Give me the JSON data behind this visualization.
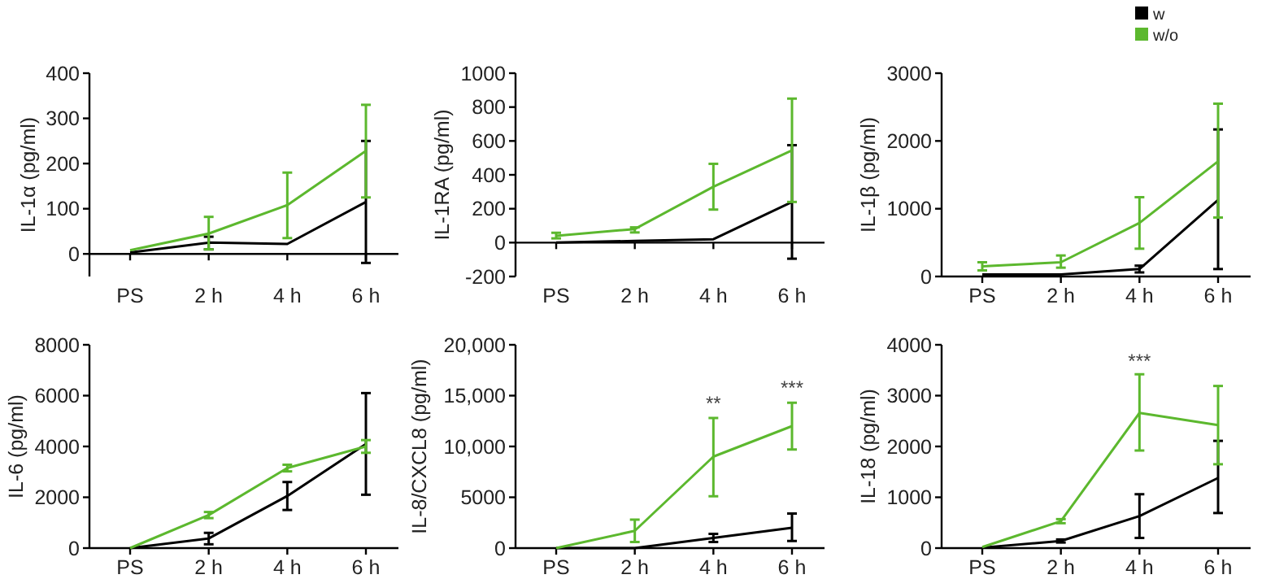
{
  "chart_data": [
    {
      "type": "line",
      "ylabel": "IL-1α (pg/ml)",
      "categories": [
        "PS",
        "2 h",
        "4 h",
        "6 h"
      ],
      "ylim": [
        -50,
        400
      ],
      "yticks": [
        0,
        100,
        200,
        300,
        400
      ],
      "series": [
        {
          "color": "#000000",
          "values": [
            3,
            25,
            22,
            115
          ],
          "errors": [
            null,
            [
              10,
              38
            ],
            null,
            [
              -20,
              250
            ]
          ]
        },
        {
          "color": "#5cb82e",
          "values": [
            8,
            45,
            108,
            228
          ],
          "errors": [
            null,
            [
              10,
              82
            ],
            [
              35,
              180
            ],
            [
              125,
              330
            ]
          ]
        }
      ]
    },
    {
      "type": "line",
      "ylabel": "IL-1RA (pg/ml)",
      "categories": [
        "PS",
        "2 h",
        "4 h",
        "6 h"
      ],
      "ylim": [
        -200,
        1000
      ],
      "yticks": [
        -200,
        0,
        200,
        400,
        600,
        800,
        1000
      ],
      "series": [
        {
          "color": "#000000",
          "values": [
            0,
            10,
            20,
            240
          ],
          "errors": [
            null,
            null,
            null,
            [
              -95,
              575
            ]
          ]
        },
        {
          "color": "#5cb82e",
          "values": [
            40,
            80,
            330,
            545
          ],
          "errors": [
            [
              25,
              58
            ],
            [
              60,
              90
            ],
            [
              195,
              465
            ],
            [
              240,
              850
            ]
          ]
        }
      ]
    },
    {
      "type": "line",
      "ylabel": "IL-1β (pg/ml)",
      "categories": [
        "PS",
        "2 h",
        "4 h",
        "6 h"
      ],
      "ylim": [
        0,
        3000
      ],
      "yticks": [
        0,
        1000,
        2000,
        3000
      ],
      "legend": "top right",
      "series": [
        {
          "name": "w",
          "color": "#000000",
          "values": [
            30,
            30,
            110,
            1130
          ],
          "errors": [
            null,
            null,
            [
              60,
              160
            ],
            [
              110,
              2170
            ]
          ]
        },
        {
          "name": "w/o",
          "color": "#5cb82e",
          "values": [
            150,
            210,
            790,
            1700
          ],
          "errors": [
            [
              90,
              210
            ],
            [
              130,
              310
            ],
            [
              410,
              1170
            ],
            [
              870,
              2550
            ]
          ]
        }
      ]
    },
    {
      "type": "line",
      "ylabel": "IL-6 (pg/ml)",
      "categories": [
        "PS",
        "2 h",
        "4 h",
        "6 h"
      ],
      "ylim": [
        0,
        8000
      ],
      "yticks": [
        0,
        2000,
        4000,
        6000,
        8000
      ],
      "series": [
        {
          "color": "#000000",
          "values": [
            0,
            380,
            2050,
            4100
          ],
          "errors": [
            null,
            [
              150,
              600
            ],
            [
              1500,
              2600
            ],
            [
              2100,
              6100
            ]
          ]
        },
        {
          "color": "#5cb82e",
          "values": [
            0,
            1300,
            3150,
            4000
          ],
          "errors": [
            null,
            [
              1180,
              1420
            ],
            [
              3020,
              3280
            ],
            [
              3750,
              4250
            ]
          ]
        }
      ]
    },
    {
      "type": "line",
      "ylabel": "IL-8/CXCL8 (pg/ml)",
      "categories": [
        "PS",
        "2 h",
        "4 h",
        "6 h"
      ],
      "ylim": [
        0,
        20000
      ],
      "yticks": [
        0,
        5000,
        {
          "value": 10000,
          "label": "10,000"
        },
        {
          "value": 15000,
          "label": "15,000"
        },
        {
          "value": 20000,
          "label": "20,000"
        }
      ],
      "annotations": [
        {
          "text": "**",
          "x": "4 h",
          "y": 13600
        },
        {
          "text": "***",
          "x": "6 h",
          "y": 15100
        }
      ],
      "series": [
        {
          "color": "#000000",
          "values": [
            0,
            0,
            1000,
            2000
          ],
          "errors": [
            null,
            null,
            [
              600,
              1400
            ],
            [
              700,
              3400
            ]
          ]
        },
        {
          "color": "#5cb82e",
          "values": [
            0,
            1700,
            9000,
            12000
          ],
          "errors": [
            null,
            [
              600,
              2800
            ],
            [
              5100,
              12800
            ],
            [
              9700,
              14300
            ]
          ]
        }
      ]
    },
    {
      "type": "line",
      "ylabel": "IL-18 (pg/ml)",
      "categories": [
        "PS",
        "2 h",
        "4 h",
        "6 h"
      ],
      "ylim": [
        0,
        4000
      ],
      "yticks": [
        0,
        1000,
        2000,
        3000,
        4000
      ],
      "annotations": [
        {
          "text": "***",
          "x": "4 h",
          "y": 3550
        }
      ],
      "series": [
        {
          "color": "#000000",
          "values": [
            10,
            140,
            630,
            1380
          ],
          "errors": [
            null,
            [
              110,
              170
            ],
            [
              200,
              1060
            ],
            [
              690,
              2110
            ]
          ]
        },
        {
          "color": "#5cb82e",
          "values": [
            20,
            530,
            2660,
            2420
          ],
          "errors": [
            null,
            [
              490,
              570
            ],
            [
              1920,
              3420
            ],
            [
              1650,
              3190
            ]
          ]
        }
      ]
    }
  ]
}
